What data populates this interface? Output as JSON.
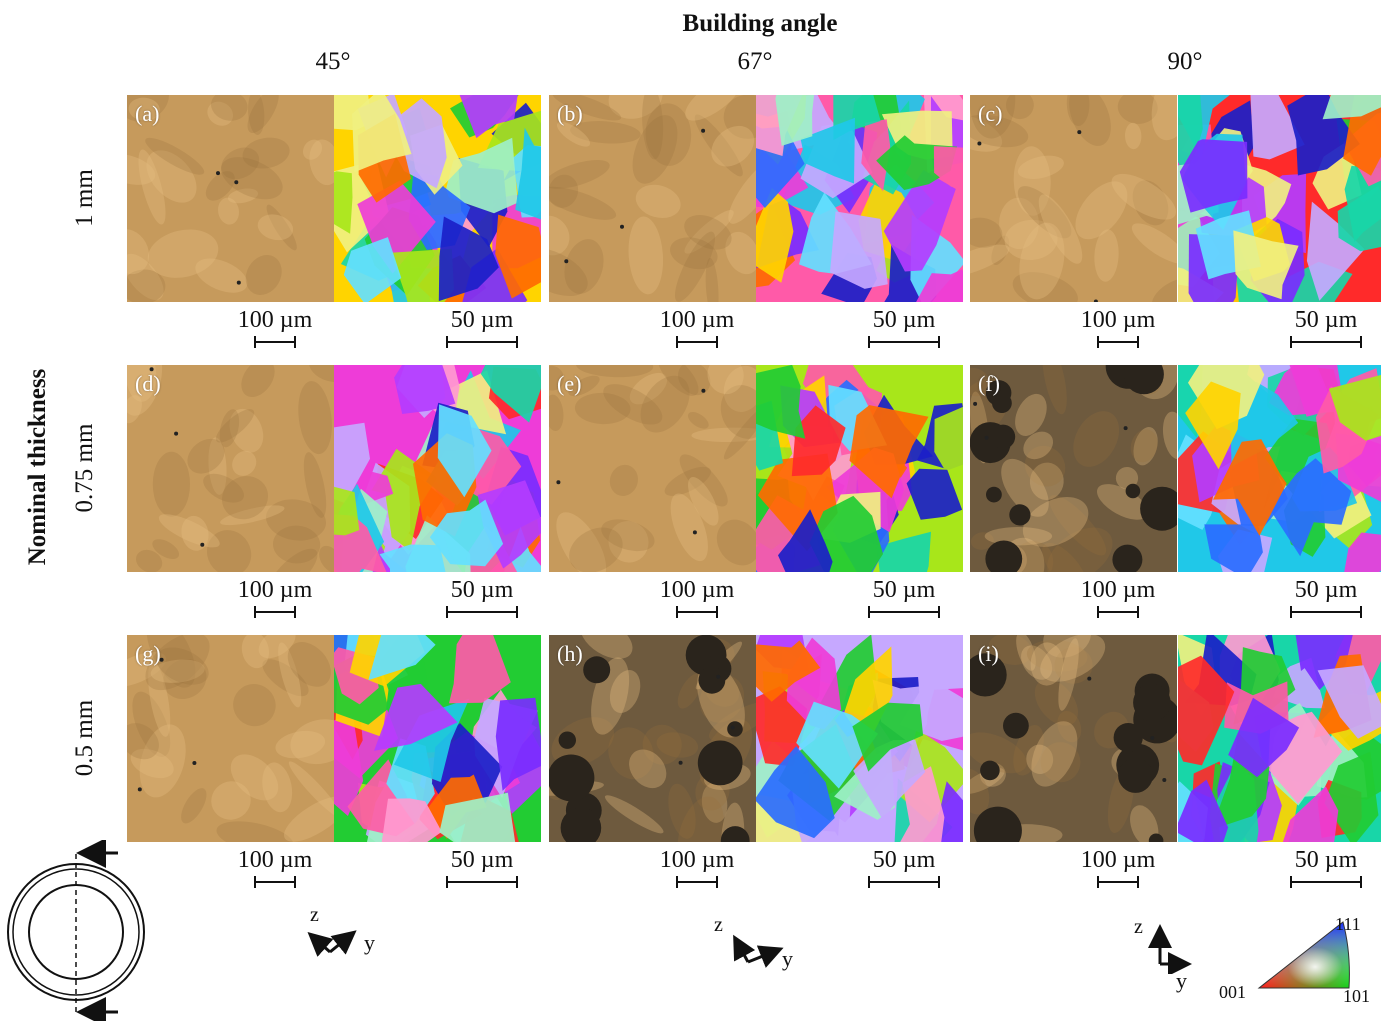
{
  "figure": {
    "title": "Building angle",
    "columns": [
      "45°",
      "67°",
      "90°"
    ],
    "row_title": "Nominal thickness",
    "rows": [
      "1 mm",
      "0.75 mm",
      "0.5 mm"
    ],
    "panels": [
      "(a)",
      "(b)",
      "(c)",
      "(d)",
      "(e)",
      "(f)",
      "(g)",
      "(h)",
      "(i)"
    ],
    "scale_optical": "100 µm",
    "scale_ebsd": "50 µm",
    "axis_z": "z",
    "axis_y": "y",
    "ipf_key": {
      "top": "111",
      "left": "001",
      "right": "101"
    }
  }
}
